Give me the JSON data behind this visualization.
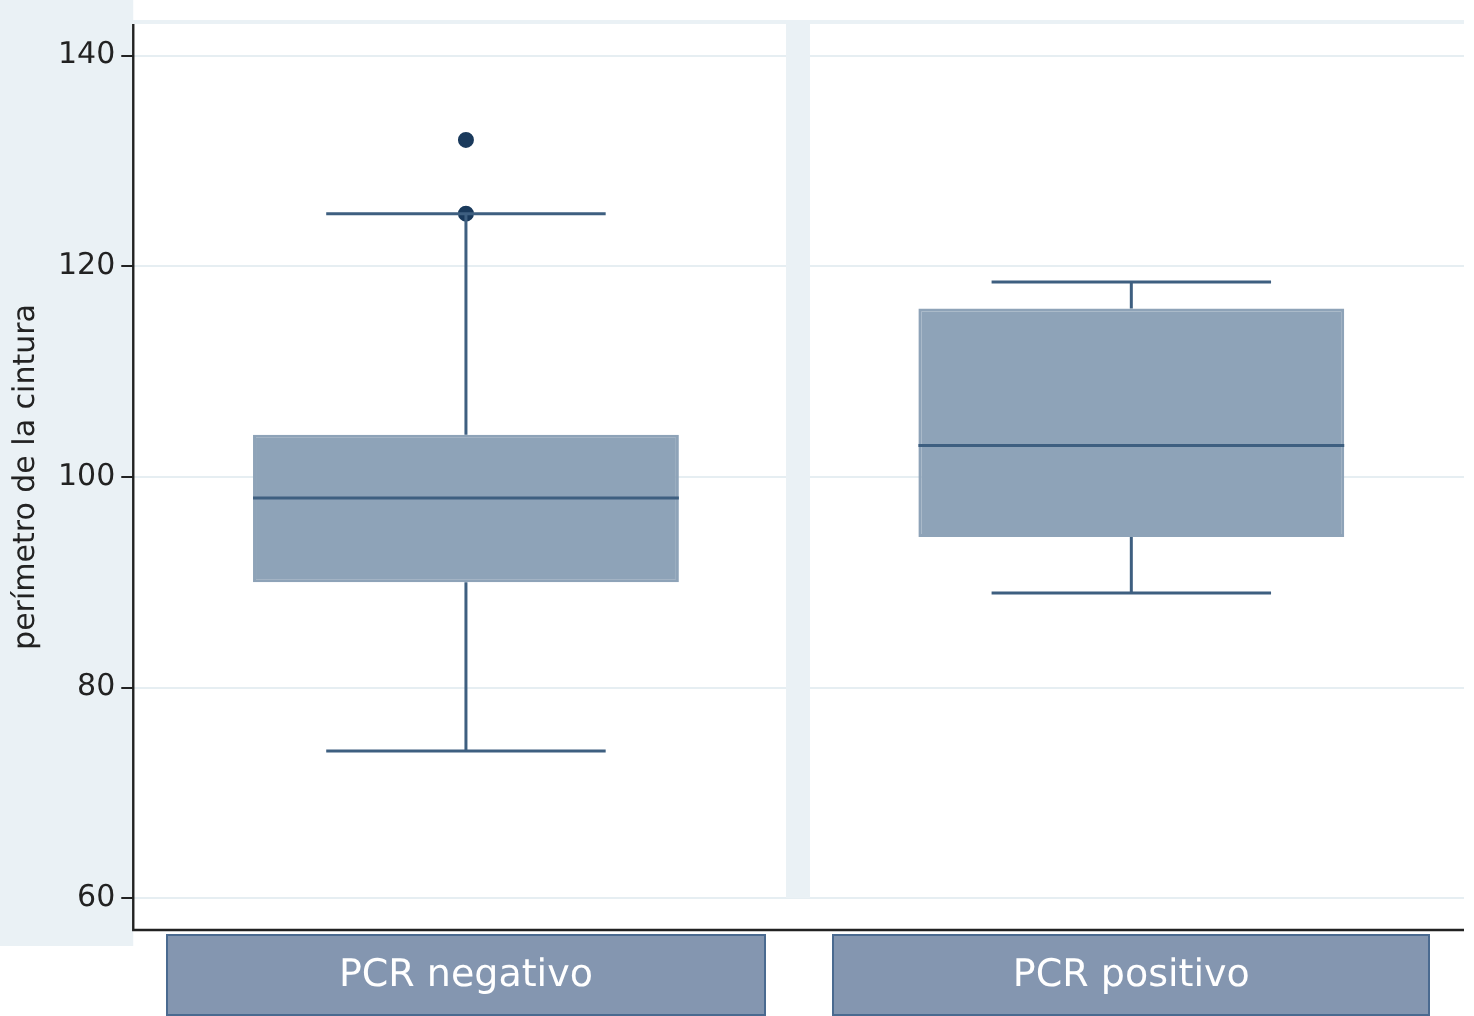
{
  "chart_data": {
    "type": "box",
    "ylabel": "perímetro de la cintura",
    "categories": [
      "PCR negativo",
      "PCR positivo"
    ],
    "boxes": [
      {
        "low": 74,
        "q1": 90,
        "median": 98,
        "q3": 104,
        "high": 125,
        "outliers": [
          132,
          125
        ]
      },
      {
        "low": 89,
        "q1": 94.3,
        "median": 103,
        "q3": 116,
        "high": 118.5
      }
    ],
    "color": "#8ea3b8",
    "ylim": [
      57,
      143
    ],
    "yticks": [
      60,
      80,
      100,
      120,
      140
    ],
    "grid": "y"
  }
}
